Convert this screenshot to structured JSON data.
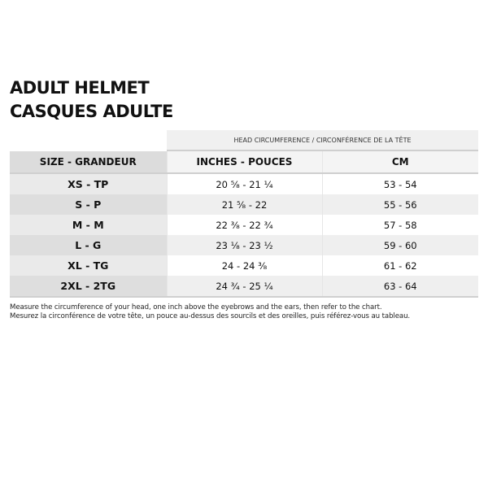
{
  "title_line1": "ADULT HELMET",
  "title_line2": "CASQUES ADULTE",
  "group_header": "HEAD CIRCUMFERENCE / CIRCONFÉRENCE DE LA TÊTE",
  "columns": [
    "SIZE - GRANDEUR",
    "INCHES - POUCES",
    "CM"
  ],
  "rows": [
    {
      "size": "XS - TP",
      "inches": "20 ⁵⁄₈ - 21 ¹⁄₄",
      "cm": "53 - 54"
    },
    {
      "size": "S - P",
      "inches": "21 ⁵⁄₈ - 22",
      "cm": "55 - 56"
    },
    {
      "size": "M - M",
      "inches": "22 ³⁄₈ - 22 ³⁄₄",
      "cm": "57 - 58"
    },
    {
      "size": "L - G",
      "inches": "23 ¹⁄₈ - 23 ¹⁄₂",
      "cm": "59 - 60"
    },
    {
      "size": "XL - TG",
      "inches": "24 - 24 ³⁄₈",
      "cm": "61 - 62"
    },
    {
      "size": "2XL - 2TG",
      "inches": "24 ³⁄₄ - 25 ¹⁄₄",
      "cm": "63 - 64"
    }
  ],
  "notes": [
    "Measure the circumference of your head, one inch above the eyebrows and the ears, then refer to the chart.",
    "Mesurez la circonférence de votre tête, un pouce au-dessus des sourcils et des oreilles, puis référez-vous au tableau."
  ]
}
